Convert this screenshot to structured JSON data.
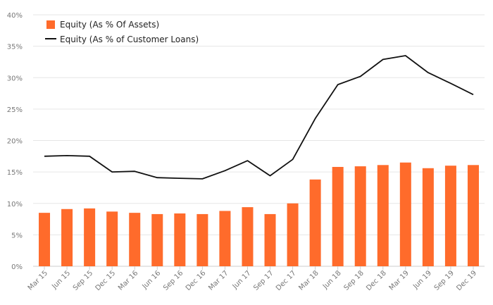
{
  "chart_data": {
    "type": "bar",
    "title": "",
    "xlabel": "",
    "ylabel": "",
    "ylim": [
      0,
      40
    ],
    "y_ticks": [
      0,
      5,
      10,
      15,
      20,
      25,
      30,
      35,
      40
    ],
    "y_tick_labels": [
      "0%",
      "5%",
      "10%",
      "15%",
      "20%",
      "25%",
      "30%",
      "35%",
      "40%"
    ],
    "grid": true,
    "legend_position": "top-left",
    "categories": [
      "Mar 15",
      "Jun 15",
      "Sep 15",
      "Dec 15",
      "Mar 16",
      "Jun 16",
      "Sep 16",
      "Dec 16",
      "Mar 17",
      "Jun 17",
      "Sep 17",
      "Dec 17",
      "Mar 18",
      "Jun 18",
      "Sep 18",
      "Dec 18",
      "Mar 19",
      "Jun 19",
      "Sep 19",
      "Dec 19"
    ],
    "series": [
      {
        "name": "Equity (As % Of Assets)",
        "type": "bar",
        "color": "#ff6b2b",
        "values": [
          8.5,
          9.1,
          9.2,
          8.7,
          8.5,
          8.3,
          8.4,
          8.3,
          8.8,
          9.4,
          8.3,
          10.0,
          13.8,
          15.8,
          15.9,
          16.1,
          16.5,
          15.6,
          16.0,
          16.1
        ]
      },
      {
        "name": "Equity (As % of Customer Loans)",
        "type": "line",
        "color": "#111111",
        "values": [
          17.5,
          17.6,
          17.5,
          15.0,
          15.1,
          14.1,
          14.0,
          13.9,
          15.2,
          16.8,
          14.4,
          17.0,
          23.5,
          28.9,
          30.2,
          32.9,
          33.5,
          30.8,
          29.1,
          27.3
        ]
      }
    ]
  }
}
